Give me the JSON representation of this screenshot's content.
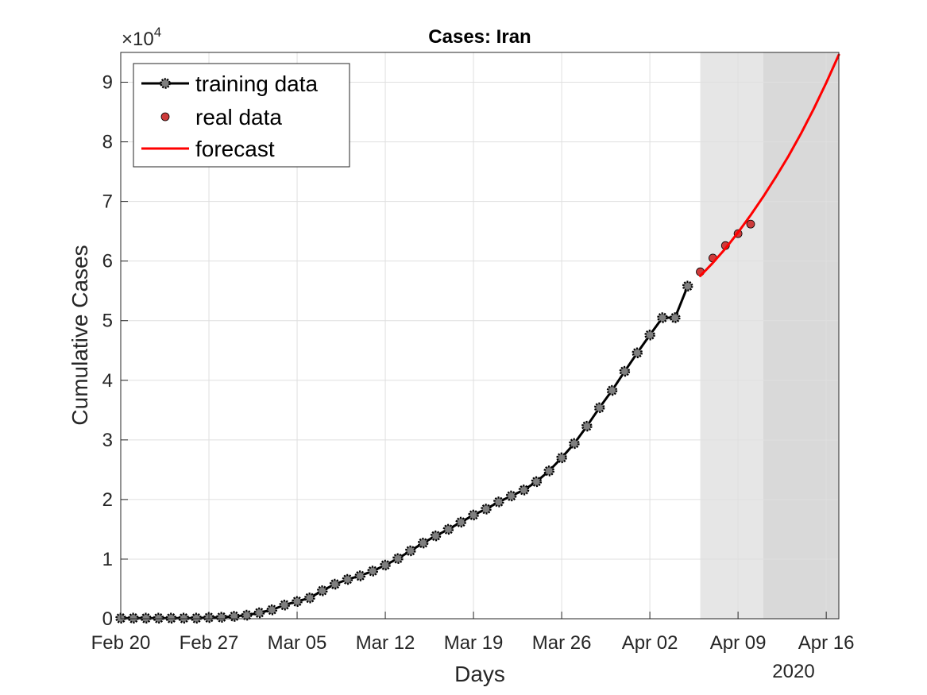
{
  "chart_data": {
    "type": "line",
    "title": "Cases: Iran",
    "xlabel": "Days",
    "ylabel": "Cumulative Cases",
    "x_secondary_label": "2020",
    "y_exponent_base": "×10",
    "y_exponent_power": "4",
    "xlim": [
      "2020-02-20",
      "2020-04-17"
    ],
    "ylim": [
      0,
      95000
    ],
    "y_ticks": [
      0,
      10000,
      20000,
      30000,
      40000,
      50000,
      60000,
      70000,
      80000,
      90000
    ],
    "y_tick_labels": [
      "0",
      "1",
      "2",
      "3",
      "4",
      "5",
      "6",
      "7",
      "8",
      "9"
    ],
    "x_ticks": [
      "2020-02-20",
      "2020-02-27",
      "2020-03-05",
      "2020-03-12",
      "2020-03-19",
      "2020-03-26",
      "2020-04-02",
      "2020-04-09",
      "2020-04-16"
    ],
    "x_tick_labels": [
      "Feb 20",
      "Feb 27",
      "Mar 05",
      "Mar 12",
      "Mar 19",
      "Mar 26",
      "Apr 02",
      "Apr 09",
      "Apr 16"
    ],
    "grid": true,
    "legend_position": "top-left",
    "shaded_regions": [
      {
        "from": "2020-04-06",
        "to": "2020-04-11",
        "color": "#e6e6e6"
      },
      {
        "from": "2020-04-11",
        "to": "2020-04-17",
        "color": "#d9d9d9"
      }
    ],
    "series": [
      {
        "name": "training data",
        "kind": "line-marker",
        "color": "#000000",
        "marker_color": "#7f7f7f",
        "points": [
          [
            "2020-02-20",
            100
          ],
          [
            "2020-02-21",
            100
          ],
          [
            "2020-02-22",
            100
          ],
          [
            "2020-02-23",
            100
          ],
          [
            "2020-02-24",
            100
          ],
          [
            "2020-02-25",
            100
          ],
          [
            "2020-02-26",
            100
          ],
          [
            "2020-02-27",
            200
          ],
          [
            "2020-02-28",
            250
          ],
          [
            "2020-02-29",
            400
          ],
          [
            "2020-03-01",
            600
          ],
          [
            "2020-03-02",
            1000
          ],
          [
            "2020-03-03",
            1500
          ],
          [
            "2020-03-04",
            2300
          ],
          [
            "2020-03-05",
            2900
          ],
          [
            "2020-03-06",
            3500
          ],
          [
            "2020-03-07",
            4700
          ],
          [
            "2020-03-08",
            5800
          ],
          [
            "2020-03-09",
            6600
          ],
          [
            "2020-03-10",
            7200
          ],
          [
            "2020-03-11",
            8000
          ],
          [
            "2020-03-12",
            9000
          ],
          [
            "2020-03-13",
            10100
          ],
          [
            "2020-03-14",
            11400
          ],
          [
            "2020-03-15",
            12700
          ],
          [
            "2020-03-16",
            13900
          ],
          [
            "2020-03-17",
            15000
          ],
          [
            "2020-03-18",
            16200
          ],
          [
            "2020-03-19",
            17400
          ],
          [
            "2020-03-20",
            18400
          ],
          [
            "2020-03-21",
            19600
          ],
          [
            "2020-03-22",
            20600
          ],
          [
            "2020-03-23",
            21600
          ],
          [
            "2020-03-24",
            23000
          ],
          [
            "2020-03-25",
            24800
          ],
          [
            "2020-03-26",
            27000
          ],
          [
            "2020-03-27",
            29400
          ],
          [
            "2020-03-28",
            32300
          ],
          [
            "2020-03-29",
            35400
          ],
          [
            "2020-03-30",
            38300
          ],
          [
            "2020-03-31",
            41500
          ],
          [
            "2020-04-01",
            44600
          ],
          [
            "2020-04-02",
            47600
          ],
          [
            "2020-04-03",
            50500
          ],
          [
            "2020-04-04",
            50500
          ],
          [
            "2020-04-05",
            55800
          ]
        ]
      },
      {
        "name": "real data",
        "kind": "scatter",
        "color": "#cd3b3b",
        "points": [
          [
            "2020-04-06",
            58200
          ],
          [
            "2020-04-07",
            60500
          ],
          [
            "2020-04-08",
            62600
          ],
          [
            "2020-04-09",
            64600
          ],
          [
            "2020-04-10",
            66200
          ]
        ]
      },
      {
        "name": "forecast",
        "kind": "line",
        "color": "#ff0000",
        "points": [
          [
            "2020-04-06",
            57500
          ],
          [
            "2020-04-07",
            59700
          ],
          [
            "2020-04-08",
            62100
          ],
          [
            "2020-04-09",
            64800
          ],
          [
            "2020-04-10",
            67700
          ],
          [
            "2020-04-11",
            70800
          ],
          [
            "2020-04-12",
            74100
          ],
          [
            "2020-04-13",
            77600
          ],
          [
            "2020-04-14",
            81400
          ],
          [
            "2020-04-15",
            85500
          ],
          [
            "2020-04-16",
            89900
          ],
          [
            "2020-04-17",
            94600
          ]
        ]
      }
    ]
  }
}
